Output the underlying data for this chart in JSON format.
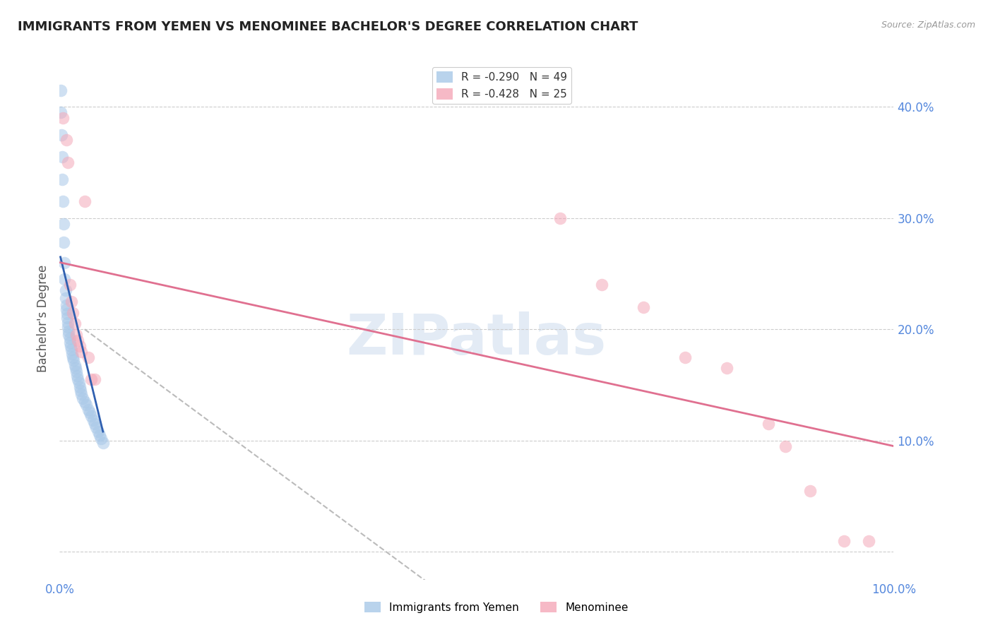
{
  "title": "IMMIGRANTS FROM YEMEN VS MENOMINEE BACHELOR'S DEGREE CORRELATION CHART",
  "source": "Source: ZipAtlas.com",
  "ylabel": "Bachelor's Degree",
  "watermark": "ZIPatlas",
  "legend_upper": [
    {
      "label": "R = -0.290   N = 49",
      "color": "#a8c4e0"
    },
    {
      "label": "R = -0.428   N = 25",
      "color": "#f4a7b9"
    }
  ],
  "blue_scatter_x": [
    0.001,
    0.001,
    0.002,
    0.003,
    0.003,
    0.004,
    0.005,
    0.005,
    0.006,
    0.006,
    0.007,
    0.007,
    0.008,
    0.008,
    0.009,
    0.009,
    0.01,
    0.01,
    0.011,
    0.011,
    0.012,
    0.012,
    0.013,
    0.014,
    0.015,
    0.016,
    0.017,
    0.018,
    0.019,
    0.02,
    0.021,
    0.022,
    0.023,
    0.024,
    0.025,
    0.026,
    0.028,
    0.03,
    0.032,
    0.034,
    0.036,
    0.038,
    0.04,
    0.042,
    0.044,
    0.046,
    0.048,
    0.05,
    0.052
  ],
  "blue_scatter_y": [
    0.415,
    0.395,
    0.375,
    0.355,
    0.335,
    0.315,
    0.295,
    0.278,
    0.26,
    0.245,
    0.235,
    0.228,
    0.222,
    0.218,
    0.214,
    0.21,
    0.206,
    0.202,
    0.198,
    0.195,
    0.192,
    0.188,
    0.185,
    0.182,
    0.178,
    0.175,
    0.172,
    0.168,
    0.165,
    0.162,
    0.158,
    0.155,
    0.152,
    0.148,
    0.145,
    0.142,
    0.138,
    0.135,
    0.132,
    0.128,
    0.125,
    0.122,
    0.118,
    0.115,
    0.112,
    0.108,
    0.105,
    0.102,
    0.098
  ],
  "pink_scatter_x": [
    0.004,
    0.008,
    0.01,
    0.012,
    0.014,
    0.016,
    0.018,
    0.02,
    0.022,
    0.024,
    0.026,
    0.03,
    0.034,
    0.038,
    0.042,
    0.6,
    0.65,
    0.7,
    0.75,
    0.8,
    0.85,
    0.87,
    0.9,
    0.94,
    0.97
  ],
  "pink_scatter_y": [
    0.39,
    0.37,
    0.35,
    0.24,
    0.225,
    0.215,
    0.205,
    0.195,
    0.19,
    0.185,
    0.18,
    0.315,
    0.175,
    0.155,
    0.155,
    0.3,
    0.24,
    0.22,
    0.175,
    0.165,
    0.115,
    0.095,
    0.055,
    0.01,
    0.01
  ],
  "blue_line_x": [
    0.001,
    0.052
  ],
  "blue_line_y": [
    0.265,
    0.108
  ],
  "pink_line_x": [
    0.001,
    1.0
  ],
  "pink_line_y": [
    0.26,
    0.095
  ],
  "dashed_line_x": [
    0.03,
    0.5
  ],
  "dashed_line_y": [
    0.2,
    -0.06
  ],
  "xlim": [
    0.0,
    1.0
  ],
  "ylim": [
    -0.025,
    0.445
  ],
  "yticks": [
    0.0,
    0.1,
    0.2,
    0.3,
    0.4
  ],
  "ytick_labels": [
    "",
    "10.0%",
    "20.0%",
    "30.0%",
    "40.0%"
  ],
  "xticks": [
    0.0,
    1.0
  ],
  "xtick_labels": [
    "0.0%",
    "100.0%"
  ],
  "grid_color": "#cccccc",
  "blue_color": "#a8c8e8",
  "pink_color": "#f4a8b8",
  "blue_line_color": "#3060b0",
  "pink_line_color": "#e07090",
  "axis_label_color": "#5588dd",
  "title_fontsize": 13,
  "label_fontsize": 12,
  "scatter_size": 160,
  "scatter_alpha": 0.55
}
